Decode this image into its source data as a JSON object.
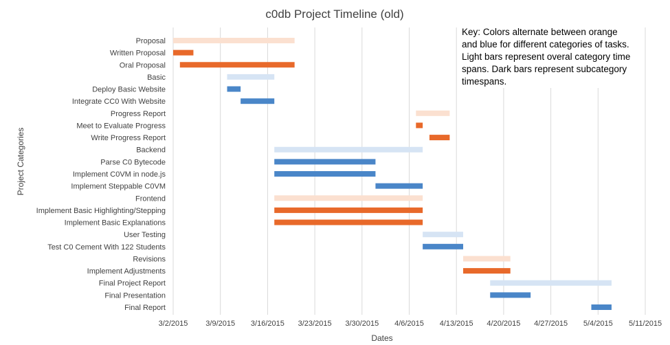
{
  "chart_data": {
    "type": "gantt",
    "title": "c0db Project Timeline (old)",
    "xlabel": "Dates",
    "ylabel": "Project Categories",
    "x_ticks": [
      "3/2/2015",
      "3/9/2015",
      "3/16/2015",
      "3/23/2015",
      "3/30/2015",
      "4/6/2015",
      "4/13/2015",
      "4/20/2015",
      "4/27/2015",
      "5/4/2015",
      "5/11/2015"
    ],
    "xlim": [
      "2015-03-02",
      "2015-05-11"
    ],
    "grid": "vertical",
    "colors": {
      "orange_dark": "#E8692A",
      "orange_light": "#FBE0D0",
      "blue_dark": "#4A86C8",
      "blue_light": "#D6E4F4"
    },
    "annotation": "Key: Colors alternate between orange and blue for different categories of tasks. Light bars represent overal category time spans. Dark bars represent subcategory timespans.",
    "tasks": [
      {
        "name": "Proposal",
        "start": "2015-03-02",
        "end": "2015-03-20",
        "color": "orange_light"
      },
      {
        "name": "Written Proposal",
        "start": "2015-03-02",
        "end": "2015-03-05",
        "color": "orange_dark"
      },
      {
        "name": "Oral Proposal",
        "start": "2015-03-03",
        "end": "2015-03-20",
        "color": "orange_dark"
      },
      {
        "name": "Basic",
        "start": "2015-03-10",
        "end": "2015-03-17",
        "color": "blue_light"
      },
      {
        "name": "Deploy Basic Website",
        "start": "2015-03-10",
        "end": "2015-03-12",
        "color": "blue_dark"
      },
      {
        "name": "Integrate CC0 With Website",
        "start": "2015-03-12",
        "end": "2015-03-17",
        "color": "blue_dark"
      },
      {
        "name": "Progress Report",
        "start": "2015-04-07",
        "end": "2015-04-12",
        "color": "orange_light"
      },
      {
        "name": "Meet to Evaluate Progress",
        "start": "2015-04-07",
        "end": "2015-04-08",
        "color": "orange_dark"
      },
      {
        "name": "Write Progress Report",
        "start": "2015-04-09",
        "end": "2015-04-12",
        "color": "orange_dark"
      },
      {
        "name": "Backend",
        "start": "2015-03-17",
        "end": "2015-04-08",
        "color": "blue_light"
      },
      {
        "name": "Parse C0 Bytecode",
        "start": "2015-03-17",
        "end": "2015-04-01",
        "color": "blue_dark"
      },
      {
        "name": "Implement C0VM in node.js",
        "start": "2015-03-17",
        "end": "2015-04-01",
        "color": "blue_dark"
      },
      {
        "name": "Implement Steppable C0VM",
        "start": "2015-04-01",
        "end": "2015-04-08",
        "color": "blue_dark"
      },
      {
        "name": "Frontend",
        "start": "2015-03-17",
        "end": "2015-04-08",
        "color": "orange_light"
      },
      {
        "name": "Implement Basic Highlighting/Stepping",
        "start": "2015-03-17",
        "end": "2015-04-08",
        "color": "orange_dark"
      },
      {
        "name": "Implement Basic Explanations",
        "start": "2015-03-17",
        "end": "2015-04-08",
        "color": "orange_dark"
      },
      {
        "name": "User Testing",
        "start": "2015-04-08",
        "end": "2015-04-14",
        "color": "blue_light"
      },
      {
        "name": "Test C0 Cement With 122 Students",
        "start": "2015-04-08",
        "end": "2015-04-14",
        "color": "blue_dark"
      },
      {
        "name": "Revisions",
        "start": "2015-04-14",
        "end": "2015-04-21",
        "color": "orange_light"
      },
      {
        "name": "Implement Adjustments",
        "start": "2015-04-14",
        "end": "2015-04-21",
        "color": "orange_dark"
      },
      {
        "name": "Final Project Report",
        "start": "2015-04-18",
        "end": "2015-05-06",
        "color": "blue_light"
      },
      {
        "name": "Final Presentation",
        "start": "2015-04-18",
        "end": "2015-04-24",
        "color": "blue_dark"
      },
      {
        "name": "Final Report",
        "start": "2015-05-03",
        "end": "2015-05-06",
        "color": "blue_dark"
      }
    ]
  }
}
